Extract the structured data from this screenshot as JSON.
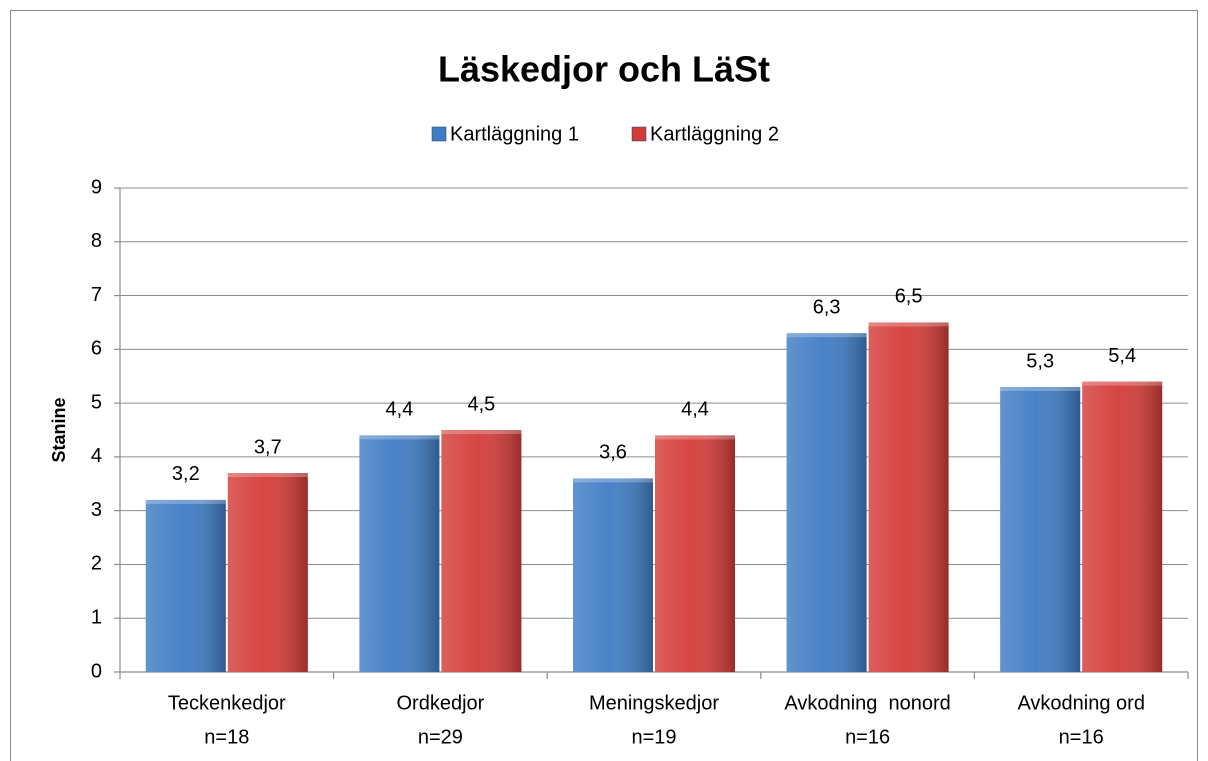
{
  "chart_data": {
    "type": "bar",
    "title": "Läskedjor och LäSt",
    "categories": [
      [
        "Teckenkedjor",
        "n=18"
      ],
      [
        "Ordkedjor",
        "n=29"
      ],
      [
        "Meningskedjor",
        "n=19"
      ],
      [
        "Avkodning  nonord",
        "n=16"
      ],
      [
        "Avkodning ord",
        "n=16"
      ]
    ],
    "series": [
      {
        "name": "Kartläggning 1",
        "color": "#3f7cc4",
        "values": [
          3.2,
          4.4,
          3.6,
          6.3,
          5.3
        ],
        "value_labels": [
          "3,2",
          "4,4",
          "3,6",
          "6,3",
          "5,3"
        ]
      },
      {
        "name": "Kartläggning 2",
        "color": "#d43c39",
        "values": [
          3.7,
          4.5,
          4.4,
          6.5,
          5.4
        ],
        "value_labels": [
          "3,7",
          "4,5",
          "4,4",
          "6,5",
          "5,4"
        ]
      }
    ],
    "ylabel": "Stanine",
    "ylim": [
      0,
      9
    ],
    "yticks": [
      0,
      1,
      2,
      3,
      4,
      5,
      6,
      7,
      8,
      9
    ],
    "grid": true,
    "legend": "top"
  }
}
